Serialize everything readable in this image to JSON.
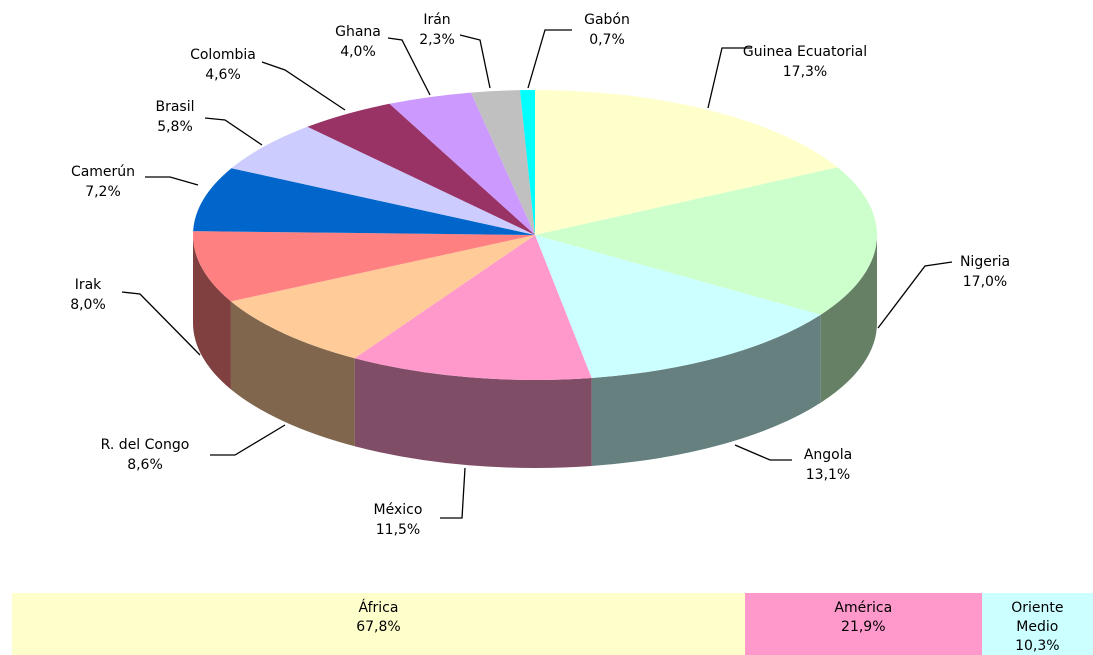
{
  "chart_data": [
    {
      "type": "pie3d",
      "categories": [
        "Guinea Ecuatorial",
        "Nigeria",
        "Angola",
        "México",
        "R. del Congo",
        "Irak",
        "Camerún",
        "Brasil",
        "Colombia",
        "Ghana",
        "Irán",
        "Gabón"
      ],
      "values": [
        17.3,
        17.0,
        13.1,
        11.5,
        8.6,
        8.0,
        7.2,
        5.8,
        4.6,
        4.0,
        2.3,
        0.7
      ],
      "value_labels": [
        "17,3%",
        "17,0%",
        "13,1%",
        "11,5%",
        "8,6%",
        "8,0%",
        "7,2%",
        "5,8%",
        "4,6%",
        "4,0%",
        "2,3%",
        "0,7%"
      ],
      "colors": [
        "#ffffcc",
        "#ccffcc",
        "#ccffff",
        "#ff99cc",
        "#ffcc99",
        "#ff8080",
        "#0066cc",
        "#ccccff",
        "#993366",
        "#cc99ff",
        "#c0c0c0",
        "#00ffff"
      ]
    },
    {
      "type": "stacked_bar",
      "series": [
        {
          "name": "África",
          "color": "#ffffcc",
          "values": [
            67.8
          ],
          "value_labels": [
            "67,8%"
          ]
        },
        {
          "name": "América",
          "color": "#ff99cc",
          "values": [
            21.9
          ],
          "value_labels": [
            "21,9%"
          ]
        },
        {
          "name": "Oriente Medio",
          "color": "#ccffff",
          "values": [
            10.3
          ],
          "value_labels": [
            "10,3%"
          ]
        }
      ]
    }
  ]
}
